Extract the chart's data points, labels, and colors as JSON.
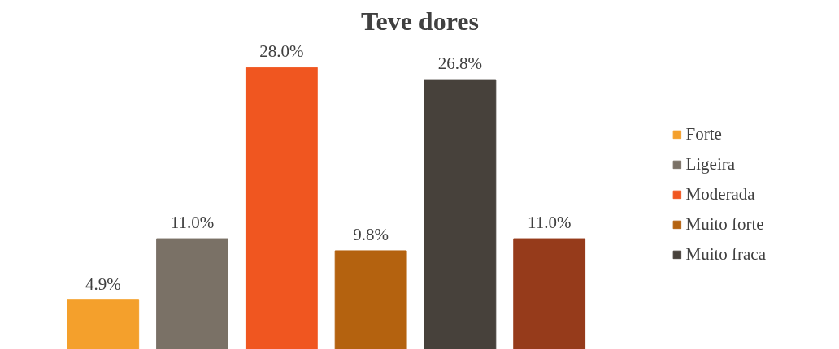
{
  "chart_data": {
    "type": "bar",
    "title": "Teve dores",
    "categories": [
      null
    ],
    "legend": "right",
    "grid": false,
    "series": [
      {
        "name": "Forte",
        "color": "#f4a02c",
        "values": [
          4.9
        ],
        "value_labels": [
          "4.9%"
        ]
      },
      {
        "name": "Ligeira",
        "color": "#7a7166",
        "values": [
          11.0
        ],
        "value_labels": [
          "11.0%"
        ]
      },
      {
        "name": "Moderada",
        "color": "#f05620",
        "values": [
          28.0
        ],
        "value_labels": [
          "28.0%"
        ]
      },
      {
        "name": "Muito forte",
        "color": "#b4620f",
        "values": [
          9.8
        ],
        "value_labels": [
          "9.8%"
        ]
      },
      {
        "name": "Muito fraca",
        "color": "#47413b",
        "values": [
          26.8
        ],
        "value_labels": [
          "26.8%"
        ]
      },
      {
        "color": "#963b1b",
        "values": [
          11.0
        ],
        "value_labels": [
          "11.0%"
        ]
      }
    ]
  }
}
